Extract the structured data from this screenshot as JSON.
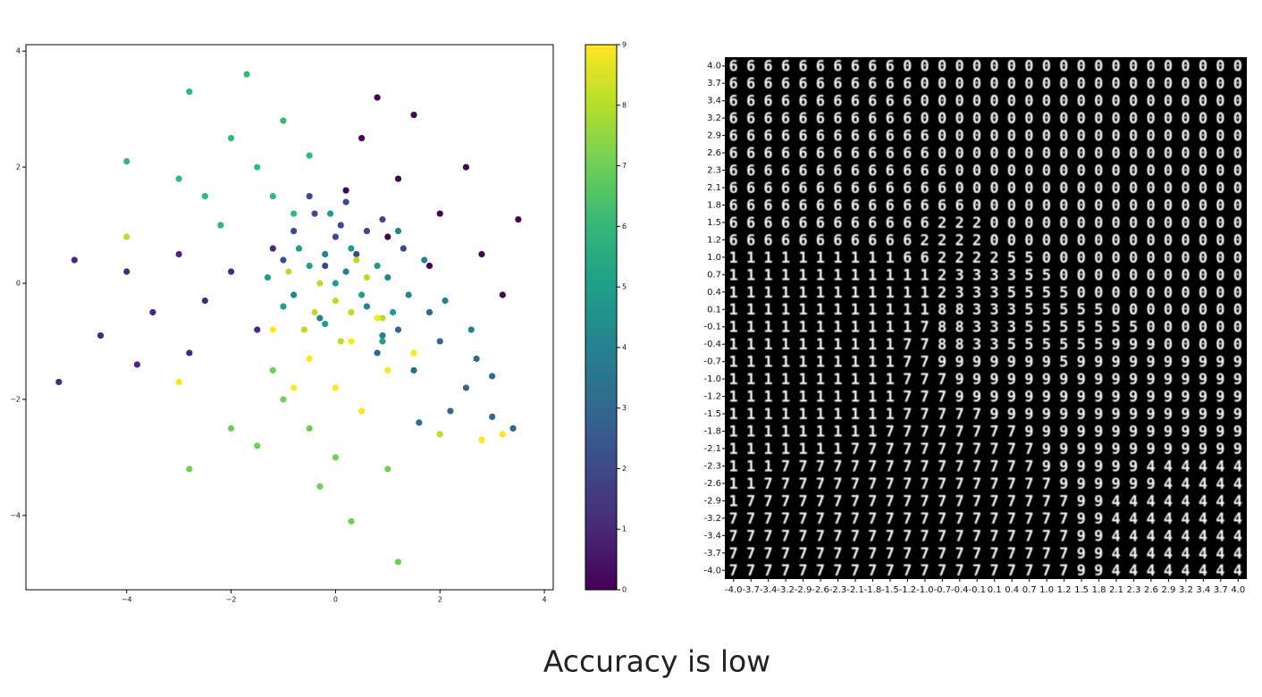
{
  "chart_data": [
    {
      "type": "scatter",
      "x": [
        0.5,
        1.2,
        2.0,
        1.5,
        0.8,
        2.8,
        3.5,
        1.8,
        0.2,
        2.5,
        3.2,
        1.0,
        -2.5,
        -3.5,
        -4.5,
        -5.3,
        -3.0,
        -2.0,
        -1.5,
        -4.0,
        -2.8,
        -1.2,
        -3.8,
        -5.0,
        0,
        -0.4,
        0.4,
        -0.8,
        0.9,
        0.2,
        -0.2,
        1.3,
        -1.0,
        0.6,
        -0.5,
        0.1,
        1.5,
        2.0,
        2.5,
        3.0,
        1.2,
        2.2,
        3.4,
        1.8,
        2.7,
        0.8,
        3.0,
        1.6,
        0.6,
        1.0,
        -0.3,
        1.4,
        0.2,
        2.1,
        -0.8,
        1.7,
        0.9,
        2.6,
        -0.2,
        1.2,
        0,
        -0.5,
        0.5,
        -1.0,
        0.8,
        -0.2,
        1.1,
        -0.7,
        0.3,
        -1.3,
        0.9,
        -0.1,
        -1.5,
        -2.0,
        -1.0,
        -2.5,
        -1.2,
        -0.5,
        -2.8,
        -1.7,
        -3.0,
        -0.8,
        -2.2,
        -4.0,
        -0.5,
        -1.0,
        0,
        -1.5,
        0.5,
        -0.3,
        -2.0,
        0.3,
        -1.2,
        1.0,
        -2.8,
        1.2,
        0,
        -0.3,
        0.3,
        -0.6,
        0.6,
        0.1,
        -0.9,
        0.9,
        -4.0,
        0.4,
        -0.4,
        2.0,
        0.3,
        -0.5,
        1.0,
        -1.2,
        0.8,
        0,
        1.5,
        -0.8,
        0.5,
        2.8,
        3.2,
        -3.0
      ],
      "y": [
        2.5,
        1.8,
        1.2,
        2.9,
        3.2,
        0.5,
        1.1,
        0.3,
        1.6,
        2.0,
        -0.2,
        0.8,
        -0.3,
        -0.5,
        -0.9,
        -1.7,
        0.5,
        0.2,
        -0.8,
        0.2,
        -1.2,
        0.6,
        -1.4,
        0.4,
        0.8,
        1.2,
        0.5,
        0.9,
        1.1,
        1.4,
        0.3,
        0.6,
        0.4,
        0.9,
        1.5,
        1.0,
        -1.5,
        -1.0,
        -1.8,
        -2.3,
        -0.8,
        -2.2,
        -2.5,
        -0.5,
        -1.3,
        -1.2,
        -1.6,
        -2.4,
        -0.4,
        0.1,
        -0.6,
        -0.2,
        0.2,
        -0.3,
        -0.2,
        0.4,
        -0.9,
        -0.8,
        0.5,
        0.9,
        0,
        0.3,
        -0.2,
        -0.4,
        0.3,
        -0.7,
        -0.5,
        0.6,
        0.6,
        0.1,
        -1.0,
        1.2,
        2.0,
        2.5,
        2.8,
        1.5,
        1.5,
        2.2,
        3.3,
        3.6,
        1.8,
        1.2,
        1.0,
        2.1,
        -2.5,
        -2.0,
        -3.0,
        -2.8,
        -2.2,
        -3.5,
        -2.5,
        -4.1,
        -1.5,
        -3.2,
        -3.2,
        -4.8,
        -0.3,
        0,
        -0.5,
        -0.8,
        0.1,
        -1.0,
        0.2,
        -0.6,
        0.8,
        0.4,
        -0.5,
        -2.6,
        -1.0,
        -1.3,
        -1.5,
        -0.8,
        -0.6,
        -1.8,
        -1.2,
        -1.8,
        -2.2,
        -2.7,
        -2.6,
        -1.7
      ],
      "c": [
        0,
        0,
        0,
        0,
        0,
        0,
        0,
        0,
        0,
        0,
        0,
        0,
        1,
        1,
        1,
        1,
        1,
        1,
        1,
        1,
        1,
        1,
        1,
        1,
        2,
        2,
        2,
        2,
        2,
        2,
        2,
        2,
        2,
        2,
        2,
        2,
        3,
        3,
        3,
        3,
        3,
        3,
        3,
        3,
        3,
        3,
        3,
        3,
        4,
        4,
        4,
        4,
        4,
        4,
        4,
        4,
        4,
        4,
        4,
        4,
        5,
        5,
        5,
        5,
        5,
        5,
        5,
        5,
        5,
        5,
        5,
        5,
        6,
        6,
        6,
        6,
        6,
        6,
        6,
        6,
        6,
        6,
        6,
        6,
        7,
        7,
        7,
        7,
        7,
        7,
        7,
        7,
        7,
        7,
        7,
        7,
        8,
        8,
        8,
        8,
        8,
        8,
        8,
        8,
        8,
        8,
        8,
        8,
        9,
        9,
        9,
        9,
        9,
        9,
        9,
        9,
        9,
        9,
        9,
        9
      ],
      "colormap": [
        "#440154",
        "#482878",
        "#3e4989",
        "#31688e",
        "#26828e",
        "#1f9e89",
        "#35b779",
        "#6ece58",
        "#b5de2b",
        "#fde725"
      ],
      "clim": [
        0,
        9
      ],
      "cticks": [
        0,
        1,
        2,
        3,
        4,
        5,
        6,
        7,
        8,
        9
      ],
      "xlim": [
        -5.93,
        4.17
      ],
      "ylim": [
        -5.28,
        4.11
      ],
      "xticks": [
        {
          "value": -4,
          "label": "−4"
        },
        {
          "value": -2,
          "label": "−2"
        },
        0,
        2,
        4
      ],
      "yticks": [
        {
          "value": -4,
          "label": "−4"
        },
        {
          "value": -2,
          "label": "−2"
        },
        0,
        2,
        4
      ]
    },
    {
      "type": "image_grid",
      "rows": [
        "666666666600000000000000000000",
        "666666666660000000000000000000",
        "666666666660000000000000000000",
        "666666666660000000000000000000",
        "666666666666000000000000000000",
        "666666666666000000000000000000",
        "666666666666600000000000000000",
        "666666666666600000000000000000",
        "666666666666660000000000000000",
        "666666666666222000000000000000",
        "666666666662222000000000000000",
        "111111111166222255000000000000",
        "111111111111233335500000000000",
        "111111111111233355550000000000",
        "111111111111883335555500000000",
        "111111111117883335555555000000",
        "111111111177883355555599900000",
        "111111111177999999959999999999",
        "111111111177799999999999999999",
        "111111111177799999999999999999",
        "111111111177777999999999999999",
        "111111111777777779999999999999",
        "111111177777777777999999999999",
        "111777777777777777999999444444",
        "117777777777777777799999944444",
        "177777777777777777779944444444",
        "777777777777777777779944444444",
        "777777777777777777779944444444",
        "777777777777777777779944444444",
        "777777777777777777779944444444"
      ],
      "yticks": [
        {
          "value": 4,
          "label": "4.0"
        },
        3.7,
        3.4,
        3.2,
        2.9,
        2.6,
        2.3,
        2.1,
        1.8,
        1.5,
        1.2,
        {
          "value": 1,
          "label": "1.0"
        },
        0.7,
        0.4,
        0.1,
        -0.1,
        -0.4,
        -0.7,
        {
          "value": -1,
          "label": "-1.0"
        },
        -1.2,
        -1.5,
        -1.8,
        -2.1,
        -2.3,
        -2.6,
        -2.9,
        -3.2,
        -3.4,
        -3.7,
        {
          "value": -4,
          "label": "-4.0"
        }
      ],
      "xticks": [
        {
          "value": -4,
          "label": "-4.0"
        },
        -3.7,
        -3.4,
        -3.2,
        -2.9,
        -2.6,
        -2.3,
        -2.1,
        -1.8,
        -1.5,
        -1.2,
        {
          "value": -1,
          "label": "-1.0"
        },
        -0.7,
        -0.4,
        -0.1,
        0.1,
        0.4,
        0.7,
        {
          "value": 1,
          "label": "1.0"
        },
        1.2,
        1.5,
        1.8,
        2.1,
        2.3,
        2.6,
        2.9,
        3.2,
        3.4,
        3.7,
        {
          "value": 4,
          "label": "4.0"
        }
      ]
    }
  ],
  "caption": "Accuracy is low"
}
